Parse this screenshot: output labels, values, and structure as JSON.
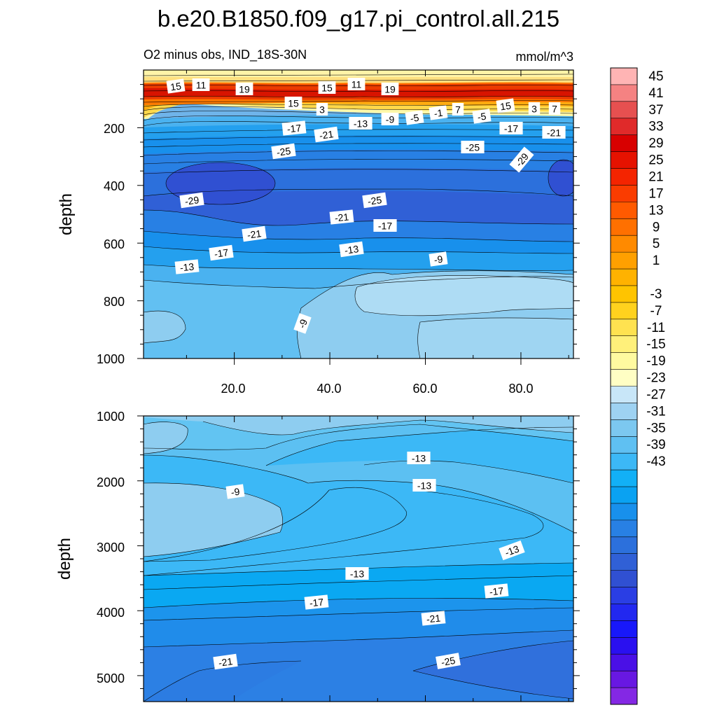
{
  "chart_data": {
    "type": "heatmap",
    "title": "b.e20.B1850.f09_g17.pi_control.all.215",
    "subtitle_left": "O2 minus obs, IND_18S-30N",
    "units": "mmol/m^3",
    "x_tick_labels": [
      "20.0",
      "40.0",
      "60.0",
      "80.0"
    ],
    "x_range": [
      1,
      91
    ],
    "colorbar": {
      "tick_labels": [
        "45",
        "41",
        "37",
        "33",
        "29",
        "25",
        "21",
        "17",
        "13",
        "9",
        "5",
        "1",
        "-3",
        "-7",
        "-11",
        "-15",
        "-19",
        "-23",
        "-27",
        "-31",
        "-35",
        "-39",
        "-43"
      ],
      "colors": [
        "#ffb4b4",
        "#f58282",
        "#e65050",
        "#e02a2a",
        "#d80000",
        "#e61200",
        "#f42400",
        "#fa3c00",
        "#ff5a00",
        "#ff7000",
        "#ff8a00",
        "#ffa000",
        "#ffb200",
        "#ffc400",
        "#ffd21e",
        "#ffe250",
        "#fff07a",
        "#fffaa0",
        "#fffec4",
        "#c8e6f8",
        "#9ed2f2",
        "#7cc8f0",
        "#5fc0f2",
        "#3cb8f6",
        "#12b0f6",
        "#0aa2f2",
        "#1890ec",
        "#2880e4",
        "#2c70dc",
        "#3060d6",
        "#3050d2",
        "#2a3ee4",
        "#2228f0",
        "#1818fa",
        "#2a10f0",
        "#4a10e6",
        "#6818e2",
        "#8428e4"
      ]
    },
    "panels": [
      {
        "name": "upper",
        "ylabel": "depth",
        "y_range": [
          0,
          1000
        ],
        "y_tick_labels": [
          "200",
          "400",
          "600",
          "800",
          "1000"
        ],
        "contour_labels": [
          "15",
          "11",
          "19",
          "15",
          "11",
          "19",
          "15",
          "3",
          "-13",
          "-9",
          "-5",
          "-1",
          "7",
          "-5",
          "15",
          "3",
          "7",
          "-17",
          "-21",
          "-17",
          "-21",
          "-25",
          "-25",
          "-29",
          "-29",
          "-25",
          "-21",
          "-17",
          "-21",
          "-17",
          "-13",
          "-13",
          "-9",
          "-9"
        ]
      },
      {
        "name": "lower",
        "ylabel": "depth",
        "y_range": [
          1000,
          5400
        ],
        "y_tick_labels": [
          "1000",
          "2000",
          "3000",
          "4000",
          "5000"
        ],
        "contour_labels": [
          "-13",
          "-9",
          "-13",
          "-13",
          "-13",
          "-17",
          "-17",
          "-21",
          "-21",
          "-25"
        ]
      }
    ]
  }
}
